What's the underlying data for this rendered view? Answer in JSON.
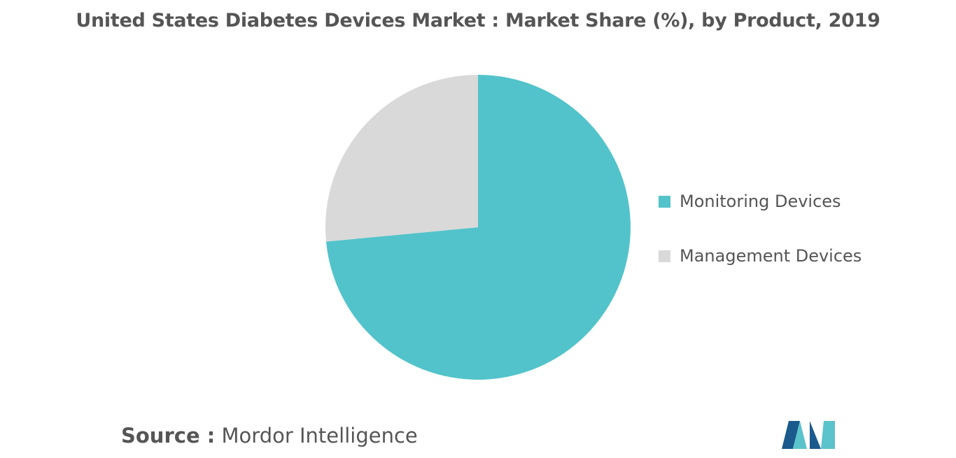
{
  "header": {
    "title": "United States Diabetes Devices Market : Market Share (%), by Product, 2019"
  },
  "chart_data": {
    "type": "pie",
    "title": "United States Diabetes Devices Market : Market Share (%), by Product, 2019",
    "legend_position": "right",
    "slices": [
      {
        "name": "Monitoring Devices",
        "value": 73.5,
        "color": "#52c3ca"
      },
      {
        "name": "Management Devices",
        "value": 26.5,
        "color": "#d9d9d9"
      }
    ]
  },
  "footer": {
    "source_prefix": "Source :",
    "source_name": "Mordor Intelligence"
  },
  "logo": {
    "icon": "mordor-intelligence-logo-icon",
    "colors": [
      "#1b5a8c",
      "#5bc3cc"
    ]
  }
}
